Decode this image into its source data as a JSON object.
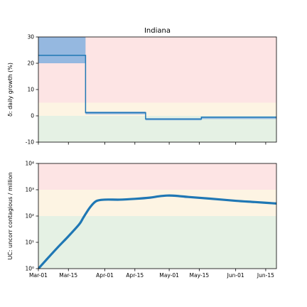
{
  "chart_data": [
    {
      "type": "line",
      "title": "Indiana",
      "ylabel": "δ: daily growth (%)",
      "ylim": [
        -10,
        30
      ],
      "yticks": [
        -10,
        0,
        10,
        20,
        30
      ],
      "xlim": [
        "Mar-01",
        "Jun-20"
      ],
      "zones": [
        {
          "name": "red",
          "range": [
            5,
            30
          ],
          "color": "#fde4e4"
        },
        {
          "name": "yellow",
          "range": [
            0,
            5
          ],
          "color": "#fdf4e3"
        },
        {
          "name": "green",
          "range": [
            -10,
            0
          ],
          "color": "#e5f1e4"
        }
      ],
      "series": [
        {
          "type": "step",
          "color": "#1f77b4",
          "segments": [
            {
              "start": "Mar-01",
              "end": "Mar-23",
              "value": 23,
              "band": [
                20,
                30
              ]
            },
            {
              "start": "Mar-23",
              "end": "Apr-20",
              "value": 1.2,
              "band": [
                0.6,
                1.6
              ]
            },
            {
              "start": "Apr-20",
              "end": "May-16",
              "value": -1.2,
              "band": [
                -1.7,
                -0.9
              ]
            },
            {
              "start": "May-16",
              "end": "Jun-20",
              "value": -0.5,
              "band": [
                -1.2,
                -0.3
              ]
            }
          ]
        }
      ]
    },
    {
      "type": "line",
      "ylabel": "UC: uncorr contagious / million",
      "yscale": "log",
      "ylim": [
        1,
        10000
      ],
      "yticks": [
        1,
        10,
        100,
        1000,
        10000
      ],
      "ytick_labels": [
        "10⁰",
        "10¹",
        "10²",
        "10³",
        "10⁴"
      ],
      "x": [
        "Mar-01",
        "Mar-05",
        "Mar-10",
        "Mar-15",
        "Mar-20",
        "Mar-22",
        "Mar-25",
        "Mar-28",
        "Apr-01",
        "Apr-08",
        "Apr-15",
        "Apr-22",
        "Apr-26",
        "Apr-30",
        "May-04",
        "May-10",
        "May-20",
        "Jun-01",
        "Jun-10",
        "Jun-20"
      ],
      "zones": [
        {
          "name": "red",
          "range": [
            1000,
            10000
          ],
          "color": "#fde4e4"
        },
        {
          "name": "yellow",
          "range": [
            100,
            1000
          ],
          "color": "#fdf4e3"
        },
        {
          "name": "green",
          "range": [
            1,
            100
          ],
          "color": "#e5f1e4"
        }
      ],
      "series": [
        {
          "color": "#1f77b4",
          "values": [
            1,
            2.3,
            6.4,
            17,
            48,
            88,
            210,
            370,
            420,
            420,
            450,
            500,
            560,
            600,
            590,
            530,
            460,
            380,
            340,
            300
          ]
        }
      ],
      "x_tick_labels": [
        "Mar-01",
        "Mar-15",
        "Apr-01",
        "Apr-15",
        "May-01",
        "May-15",
        "Jun-01",
        "Jun-15"
      ]
    }
  ],
  "colors": {
    "line": "#1f77b4",
    "band": "#8fb5df"
  }
}
